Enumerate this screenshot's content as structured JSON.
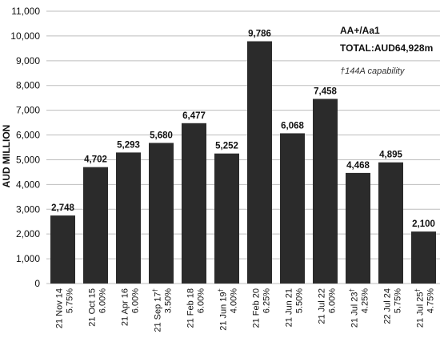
{
  "chart_data": {
    "type": "bar",
    "ylabel": "AUD MILLION",
    "ylim": [
      0,
      11000
    ],
    "yticks": [
      "0",
      "1,000",
      "2,000",
      "3,000",
      "4,000",
      "5,000",
      "6,000",
      "7,000",
      "8,000",
      "9,000",
      "10,000",
      "11,000"
    ],
    "ytick_values": [
      0,
      1000,
      2000,
      3000,
      4000,
      5000,
      6000,
      7000,
      8000,
      9000,
      10000,
      11000
    ],
    "grid": true,
    "bar_color": "#2b2b2b",
    "categories": [
      {
        "date": "21 Nov 14",
        "mark": "",
        "coupon": "5.75%"
      },
      {
        "date": "21 Oct 15",
        "mark": "",
        "coupon": "6.00%"
      },
      {
        "date": "21 Apr 16",
        "mark": "",
        "coupon": "6.00%"
      },
      {
        "date": "21 Sep 17",
        "mark": "†",
        "coupon": "3.50%"
      },
      {
        "date": "21 Feb 18",
        "mark": "",
        "coupon": "6.00%"
      },
      {
        "date": "21 Jun 19",
        "mark": "†",
        "coupon": "4.00%"
      },
      {
        "date": "21 Feb 20",
        "mark": "",
        "coupon": "6.25%"
      },
      {
        "date": "21 Jun 21",
        "mark": "",
        "coupon": "5.50%"
      },
      {
        "date": "21 Jul 22",
        "mark": "",
        "coupon": "6.00%"
      },
      {
        "date": "21 Jul 23",
        "mark": "†",
        "coupon": "4.25%"
      },
      {
        "date": "22 Jul 24",
        "mark": "",
        "coupon": "5.75%"
      },
      {
        "date": "21 Jul 25",
        "mark": "†",
        "coupon": "4.75%"
      }
    ],
    "values": [
      2748,
      4702,
      5293,
      5680,
      6477,
      5252,
      9786,
      6068,
      7458,
      4468,
      4895,
      2100
    ],
    "value_labels": [
      "2,748",
      "4,702",
      "5,293",
      "5,680",
      "6,477",
      "5,252",
      "9,786",
      "6,068",
      "7,458",
      "4,468",
      "4,895",
      "2,100"
    ],
    "annotations": {
      "rating": "AA+/Aa1",
      "total": "TOTAL:AUD64,928m",
      "footnote": "†144A capability"
    }
  }
}
